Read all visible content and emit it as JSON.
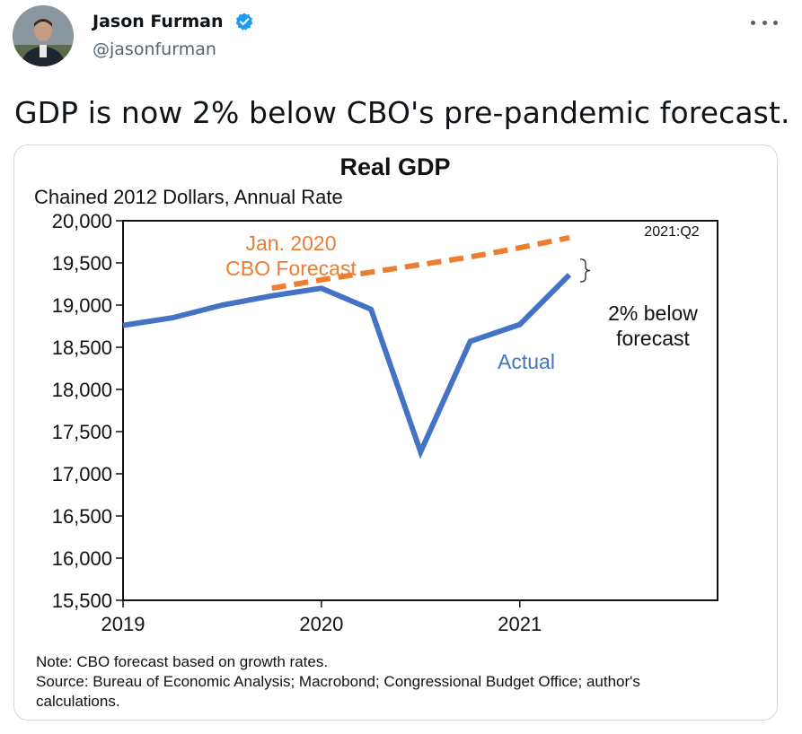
{
  "tweet": {
    "author_name": "Jason Furman",
    "handle": "@jasonfurman",
    "text": "GDP is now 2% below CBO's pre-pandemic forecast.",
    "verified": true
  },
  "icons": {
    "verified": "verified-badge-icon",
    "more": "more-options-icon"
  },
  "colors": {
    "actual_line": "#4472c4",
    "forecast_line": "#ed7d31",
    "verified_badge": "#1d9bf0"
  },
  "chart_data": {
    "type": "line",
    "title": "Real GDP",
    "subtitle": "Chained 2012 Dollars, Annual Rate",
    "ylim": [
      15500,
      20000
    ],
    "yticks": [
      15500,
      16000,
      16500,
      17000,
      17500,
      18000,
      18500,
      19000,
      19500,
      20000
    ],
    "ytick_labels": [
      "15,500",
      "16,000",
      "16,500",
      "17,000",
      "17,500",
      "18,000",
      "18,500",
      "19,000",
      "19,500",
      "20,000"
    ],
    "x_categories": [
      "2019",
      "2020",
      "2021"
    ],
    "grid": false,
    "series": [
      {
        "name": "Actual",
        "quarters": [
          "2019:Q1",
          "2019:Q2",
          "2019:Q3",
          "2019:Q4",
          "2020:Q1",
          "2020:Q2",
          "2020:Q3",
          "2020:Q4",
          "2021:Q1",
          "2021:Q2"
        ],
        "values": [
          18760,
          18850,
          19000,
          19110,
          19200,
          18950,
          17260,
          18570,
          18770,
          19360
        ],
        "color": "#4472c4",
        "style": "solid"
      },
      {
        "name": "Jan. 2020 CBO Forecast",
        "quarters": [
          "2019:Q4",
          "2020:Q1",
          "2020:Q2",
          "2020:Q3",
          "2020:Q4",
          "2021:Q1",
          "2021:Q2"
        ],
        "values": [
          19200,
          19300,
          19390,
          19480,
          19570,
          19680,
          19800
        ],
        "color": "#ed7d31",
        "style": "dashed"
      }
    ],
    "annotations": {
      "forecast_label_line1": "Jan. 2020",
      "forecast_label_line2": "CBO Forecast",
      "actual_label": "Actual",
      "endpoint_label": "2021:Q2",
      "gap_label_line1": "2% below",
      "gap_label_line2": "forecast"
    },
    "notes": [
      "Note:  CBO forecast based on growth rates.",
      "Source: Bureau of Economic Analysis; Macrobond;  Congressional Budget Office; author's",
      "calculations."
    ]
  }
}
